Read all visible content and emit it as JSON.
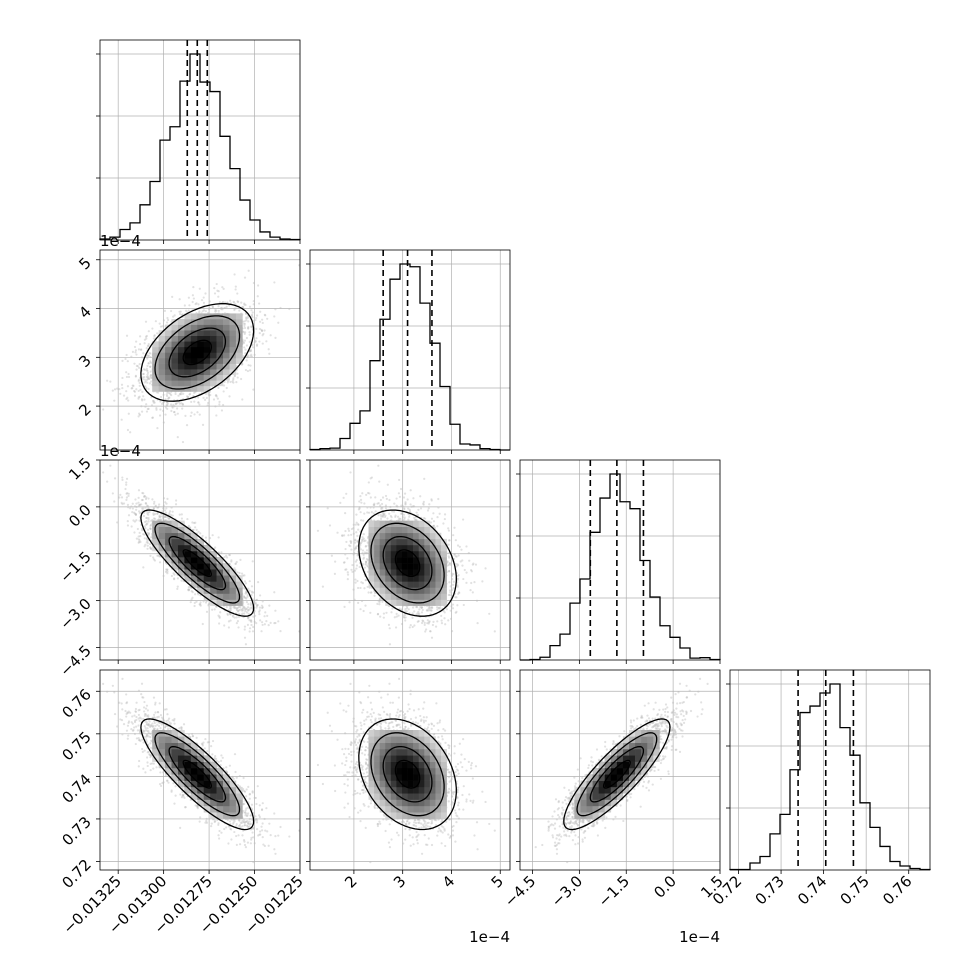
{
  "chart_data": {
    "type": "corner",
    "title": "",
    "parameters": [
      {
        "key": "p0",
        "range": [
          -0.01335,
          -0.01225
        ],
        "ticks": [
          -0.01325,
          -0.013,
          -0.01275,
          -0.0125,
          -0.01225
        ],
        "tick_labels": [
          "−0.01325",
          "−0.01300",
          "−0.01275",
          "−0.01250",
          "−0.01225"
        ],
        "offset_label": "",
        "mean": -0.012815,
        "sigma": 0.000155,
        "quantiles": [
          -0.01287,
          -0.012815,
          -0.01276
        ]
      },
      {
        "key": "p1",
        "range": [
          1.1,
          5.2
        ],
        "ticks": [
          2,
          3,
          4,
          5
        ],
        "tick_labels": [
          "2",
          "3",
          "4",
          "5"
        ],
        "offset_label": "1e−4",
        "mean": 3.1,
        "sigma": 0.5,
        "quantiles": [
          2.6,
          3.1,
          3.6
        ]
      },
      {
        "key": "p2",
        "range": [
          -4.9,
          1.5
        ],
        "ticks": [
          -4.5,
          -3.0,
          -1.5,
          0.0,
          1.5
        ],
        "tick_labels": [
          "−4.5",
          "−3.0",
          "−1.5",
          "0.0",
          "1.5"
        ],
        "offset_label": "1e−4",
        "mean": -1.8,
        "sigma": 0.85,
        "quantiles": [
          -2.65,
          -1.8,
          -0.95
        ]
      },
      {
        "key": "p3",
        "range": [
          0.718,
          0.765
        ],
        "ticks": [
          0.72,
          0.73,
          0.74,
          0.75,
          0.76
        ],
        "tick_labels": [
          "0.72",
          "0.73",
          "0.74",
          "0.75",
          "0.76"
        ],
        "offset_label": "",
        "mean": 0.7405,
        "sigma": 0.0065,
        "quantiles": [
          0.734,
          0.7405,
          0.747
        ]
      }
    ],
    "correlations": [
      [
        1,
        0.45,
        -0.85,
        -0.85
      ],
      [
        0.45,
        1,
        -0.3,
        -0.3
      ],
      [
        -0.85,
        -0.3,
        1,
        0.85
      ],
      [
        -0.85,
        -0.3,
        0.85,
        1
      ]
    ],
    "histogram_bins": 20,
    "contour_levels_sigma": [
      0.5,
      1.0,
      1.5,
      2.0
    ],
    "grid": true,
    "colors": {
      "line": "#000000",
      "grid": "#b0b0b0",
      "points": "#bdbdbd",
      "density_max": "#000000",
      "density_min": "#ffffff"
    }
  }
}
